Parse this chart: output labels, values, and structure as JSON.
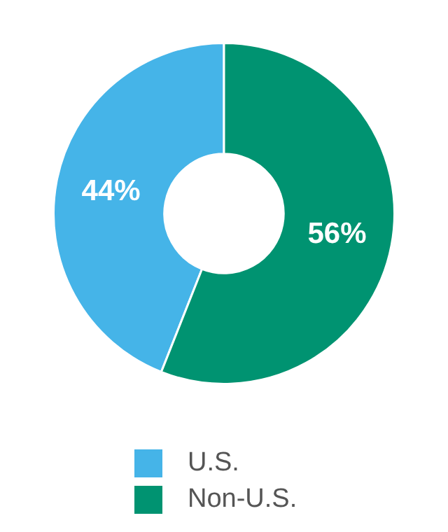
{
  "chart_data": {
    "type": "donut",
    "categories": [
      "U.S.",
      "Non-U.S."
    ],
    "values": [
      44,
      56
    ],
    "colors": [
      "#45b4e8",
      "#009371"
    ],
    "value_labels": [
      "44%",
      "56%"
    ],
    "legend": "bottom"
  }
}
